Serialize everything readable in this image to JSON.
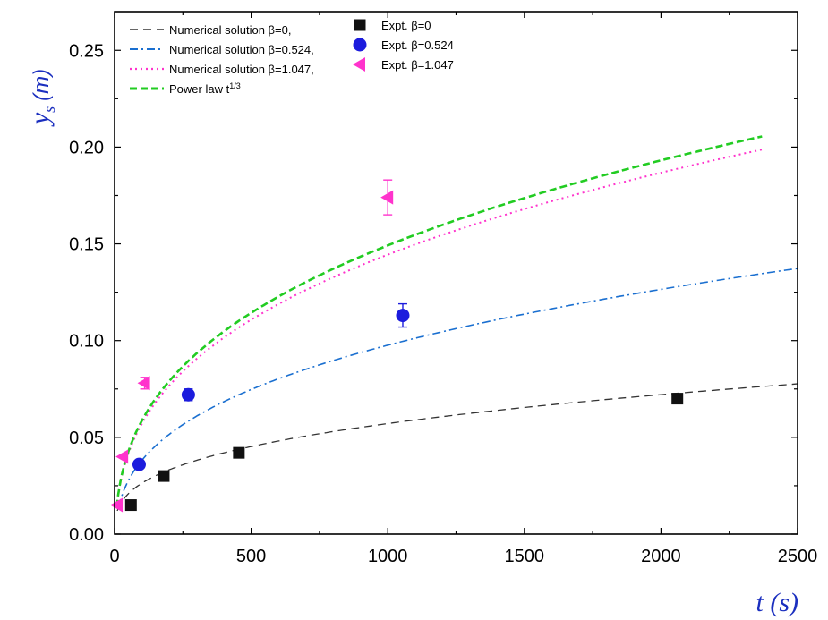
{
  "chart_data": {
    "type": "line",
    "title": "",
    "xlabel": "t (s)",
    "ylabel": "y_s (m)",
    "ylabel_symbol": "y",
    "ylabel_sub": "s",
    "ylabel_unit": "(m)",
    "xlim": [
      0,
      2500
    ],
    "ylim": [
      0,
      0.27
    ],
    "xticks": [
      0,
      500,
      1000,
      1500,
      2000,
      2500
    ],
    "yticks": [
      0.0,
      0.05,
      0.1,
      0.15,
      0.2,
      0.25
    ],
    "grid": false,
    "legend_position": "top-left",
    "lines": [
      {
        "name": "Numerical solution β=0,",
        "style": "long-dash",
        "color": "#333333",
        "t0": 10,
        "y0": 0.012,
        "k": 0.00575,
        "t_end": 2500
      },
      {
        "name": "Numerical solution β=0.524,",
        "style": "dash-dot",
        "color": "#1a6fd0",
        "t0": 15,
        "y0": 0.014,
        "k": 0.0111,
        "t_end": 2500
      },
      {
        "name": "Numerical solution β=1.047,",
        "style": "dot",
        "color": "#ff33cc",
        "t0": 8,
        "y0": 0.014,
        "k": 0.0163,
        "t_end": 2370
      },
      {
        "name": "Power law t",
        "name_sup": "1/3",
        "style": "dash",
        "color": "#22cc22",
        "t0": 8,
        "y0": 0.014,
        "k": 0.0169,
        "t_end": 2370
      }
    ],
    "experiments": [
      {
        "name": "Expt. β=0",
        "marker": "square",
        "color": "#111111",
        "points": [
          {
            "x": 60,
            "y": 0.015,
            "err": 0
          },
          {
            "x": 180,
            "y": 0.03,
            "err": 0
          },
          {
            "x": 455,
            "y": 0.042,
            "err": 0
          },
          {
            "x": 2060,
            "y": 0.07,
            "err": 0.002
          }
        ]
      },
      {
        "name": "Expt. β=0.524",
        "marker": "circle",
        "color": "#1c1cdd",
        "points": [
          {
            "x": 90,
            "y": 0.036,
            "err": 0
          },
          {
            "x": 270,
            "y": 0.072,
            "err": 0.003
          },
          {
            "x": 1055,
            "y": 0.113,
            "err": 0.006
          }
        ]
      },
      {
        "name": "Expt. β=1.047",
        "marker": "triangle-left",
        "color": "#ff33cc",
        "points": [
          {
            "x": 10,
            "y": 0.015,
            "err": 0
          },
          {
            "x": 30,
            "y": 0.04,
            "err": 0
          },
          {
            "x": 110,
            "y": 0.078,
            "err": 0.003
          },
          {
            "x": 1000,
            "y": 0.174,
            "err": 0.009
          }
        ]
      }
    ]
  }
}
